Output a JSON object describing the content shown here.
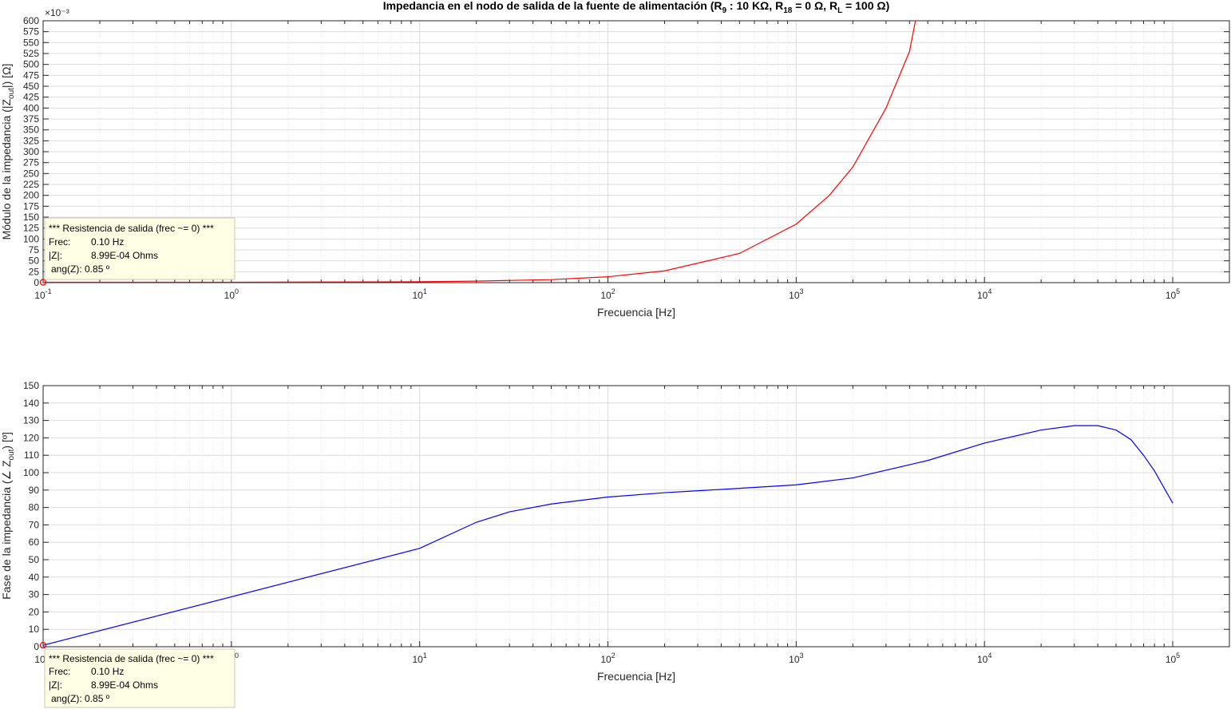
{
  "chart_data": [
    {
      "type": "line",
      "title": "Impedancia en el nodo de salida de la fuente de alimentación (R9 : 10 KΩ, R18 = 0 Ω, RL = 100 Ω)",
      "title_parts": [
        "Impedancia en el nodo de salida de la fuente de alimentación (R",
        "9",
        " : 10 KΩ, R",
        "18",
        " = 0 Ω, R",
        "L",
        " = 100 Ω)"
      ],
      "xlabel": "Frecuencia [Hz]",
      "ylabel_parts": [
        "Módulo de la impedancia (|Z",
        "out",
        "|) [Ω]"
      ],
      "y_exponent": "×10⁻³",
      "xscale": "log",
      "xlim": [
        0.1,
        200000
      ],
      "ylim": [
        0,
        600
      ],
      "yticks": [
        0,
        25,
        50,
        75,
        100,
        125,
        150,
        175,
        200,
        225,
        250,
        275,
        300,
        325,
        350,
        375,
        400,
        425,
        450,
        475,
        500,
        525,
        550,
        575,
        600
      ],
      "xtick_decades": [
        -1,
        0,
        1,
        2,
        3,
        4,
        5
      ],
      "grid": true,
      "series": [
        {
          "color": "#ff0000",
          "x": [
            0.1,
            1,
            10,
            20,
            50,
            100,
            200,
            500,
            1000,
            1500,
            2000,
            3000,
            4000,
            4300
          ],
          "y": [
            0.9,
            1,
            2,
            3.5,
            7,
            13.5,
            27,
            67,
            134,
            200,
            265,
            400,
            530,
            600
          ]
        }
      ],
      "marker": {
        "x": 0.1,
        "y": 0.9,
        "color": "#ff0000"
      },
      "datatip": {
        "line1": "*** Resistencia de salida (frec ~= 0) ***",
        "frec_label": "Frec:",
        "frec_value": "0.10 Hz",
        "z_label": "|Z|:",
        "z_value": "8.99E-04 Ohms",
        "ang": "ang(Z): 0.85 º"
      }
    },
    {
      "type": "line",
      "xlabel": "Frecuencia [Hz]",
      "ylabel_parts": [
        "Fase de la impedancia (∠ Z",
        "out",
        ") [º]"
      ],
      "xscale": "log",
      "xlim": [
        0.1,
        200000
      ],
      "ylim": [
        0,
        150
      ],
      "yticks": [
        0,
        10,
        20,
        30,
        40,
        50,
        60,
        70,
        80,
        90,
        100,
        110,
        120,
        130,
        140,
        150
      ],
      "xtick_decades": [
        -1,
        0,
        1,
        2,
        3,
        4,
        5
      ],
      "grid": true,
      "series": [
        {
          "color": "#0000ff",
          "x": [
            0.1,
            10,
            20,
            30,
            50,
            100,
            200,
            500,
            1000,
            2000,
            5000,
            10000,
            20000,
            30000,
            40000,
            50000,
            60000,
            70000,
            80000,
            100000
          ],
          "y": [
            0.85,
            56.5,
            71.5,
            77.5,
            82,
            86,
            88.5,
            91,
            93,
            97,
            107,
            117,
            124.5,
            127,
            127,
            124.5,
            119,
            110,
            101,
            82.5
          ]
        }
      ],
      "marker": {
        "x": 0.1,
        "y": 0.85,
        "color": "#ff0000"
      },
      "datatip": {
        "line1": "*** Resistencia de salida (frec ~= 0) ***",
        "frec_label": "Frec:",
        "frec_value": "0.10 Hz",
        "z_label": "|Z|:",
        "z_value": "8.99E-04 Ohms",
        "ang": "ang(Z): 0.85 º"
      }
    }
  ]
}
